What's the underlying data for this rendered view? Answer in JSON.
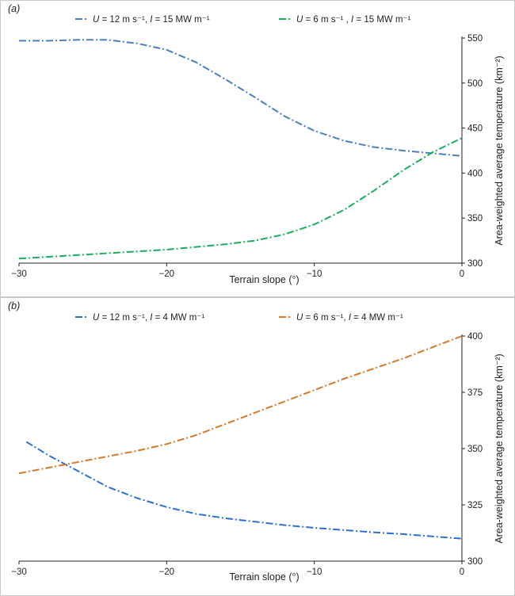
{
  "chart_data": [
    {
      "panel_label": "(a)",
      "type": "line",
      "xlabel": "Terrain slope (°)",
      "ylabel": "Area-weighted average temperature (km⁻²)",
      "xlim": [
        -30,
        0
      ],
      "ylim": [
        300,
        550
      ],
      "xticks": [
        -30,
        -20,
        -10,
        0
      ],
      "xtick_labels": [
        "−30",
        "−20",
        "−10",
        "0"
      ],
      "yticks": [
        300,
        350,
        400,
        450,
        500,
        550
      ],
      "y_axis_position": "right",
      "grid": false,
      "legend_position": "top",
      "series": [
        {
          "name": "U = 12 m s⁻¹, I = 15 MW m⁻¹",
          "color": "#4a7fc1",
          "x": [
            -30,
            -28,
            -26,
            -24,
            -22,
            -20,
            -18,
            -16,
            -14,
            -12,
            -10,
            -8,
            -6,
            -4,
            -2,
            0
          ],
          "y": [
            547,
            547,
            548,
            548,
            544,
            537,
            523,
            504,
            484,
            463,
            447,
            436,
            429,
            425,
            422,
            419
          ]
        },
        {
          "name": "U = 6 m s⁻¹ , I = 15 MW m⁻¹",
          "color": "#1aaf5d",
          "x": [
            -30,
            -28,
            -26,
            -24,
            -22,
            -20,
            -18,
            -16,
            -14,
            -12,
            -10,
            -8,
            -6,
            -4,
            -2,
            0
          ],
          "y": [
            305,
            307,
            309,
            311,
            313,
            315,
            318,
            321,
            325,
            332,
            343,
            359,
            380,
            403,
            423,
            439
          ]
        }
      ]
    },
    {
      "panel_label": "(b)",
      "type": "line",
      "xlabel": "Terrain slope (°)",
      "ylabel": "Area-weighted average temperature (km⁻²)",
      "xlim": [
        -30,
        0
      ],
      "ylim": [
        300,
        400
      ],
      "xticks": [
        -30,
        -20,
        -10,
        0
      ],
      "xtick_labels": [
        "−30",
        "−20",
        "−10",
        "0"
      ],
      "yticks": [
        300,
        325,
        350,
        375,
        400
      ],
      "y_axis_position": "right",
      "grid": false,
      "legend_position": "top",
      "series": [
        {
          "name": "U = 12 m s⁻¹, I = 4 MW m⁻¹",
          "color": "#2b6fd6",
          "x": [
            -29.5,
            -28,
            -26,
            -24,
            -22,
            -20,
            -18,
            -16,
            -14,
            -12,
            -10,
            -8,
            -6,
            -4,
            -2,
            0
          ],
          "y": [
            353,
            347,
            340,
            333,
            328,
            324,
            321,
            319,
            317.5,
            316,
            314.8,
            313.8,
            312.8,
            312,
            311,
            310
          ]
        },
        {
          "name": "U = 6 m s⁻¹, I = 4 MW m⁻¹",
          "color": "#d47a2a",
          "x": [
            -30,
            -28,
            -26,
            -24,
            -22,
            -20,
            -18,
            -16,
            -14,
            -12,
            -10,
            -8,
            -6,
            -4,
            -2,
            0
          ],
          "y": [
            339,
            341.5,
            344,
            346.5,
            349,
            352,
            356,
            361,
            366,
            371,
            376,
            381,
            385.5,
            390,
            395,
            400
          ]
        }
      ]
    }
  ]
}
